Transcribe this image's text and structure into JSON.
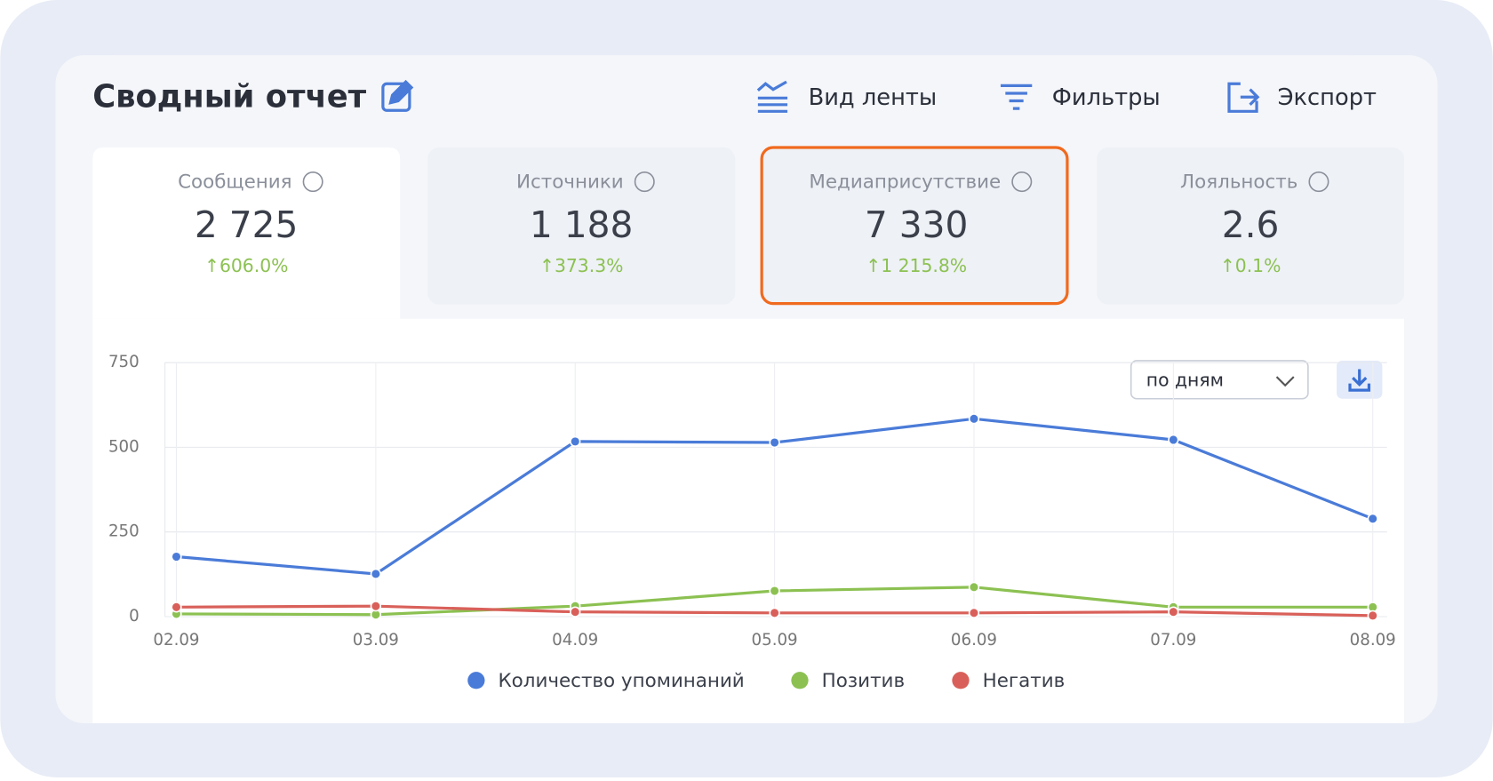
{
  "header": {
    "title": "Сводный отчет",
    "actions": [
      "Вид ленты",
      "Фильтры",
      "Экспорт"
    ]
  },
  "kpis": [
    {
      "label": "Сообщения",
      "value": "2 725",
      "change": "↑606.0%"
    },
    {
      "label": "Источники",
      "value": "1 188",
      "change": "↑373.3%"
    },
    {
      "label": "Медиаприсутствие",
      "value": "7 330",
      "change": "↑1 215.8%"
    },
    {
      "label": "Лояльность",
      "value": "2.6",
      "change": "↑0.1%"
    }
  ],
  "period_select": "по дням",
  "chart_data": {
    "type": "line",
    "categories": [
      "02.09",
      "03.09",
      "04.09",
      "05.09",
      "06.09",
      "07.09",
      "08.09"
    ],
    "series": [
      {
        "name": "Количество упоминаний",
        "color": "#4a7bd8",
        "values": [
          177,
          126,
          517,
          514,
          584,
          522,
          289
        ]
      },
      {
        "name": "Позитив",
        "color": "#8cc152",
        "values": [
          8,
          6,
          31,
          76,
          87,
          28,
          28
        ]
      },
      {
        "name": "Негатив",
        "color": "#d9605a",
        "values": [
          28,
          31,
          14,
          11,
          11,
          14,
          3
        ]
      }
    ],
    "ylim": [
      0,
      750
    ],
    "yticks": [
      0,
      250,
      500,
      750
    ],
    "grid": true
  }
}
